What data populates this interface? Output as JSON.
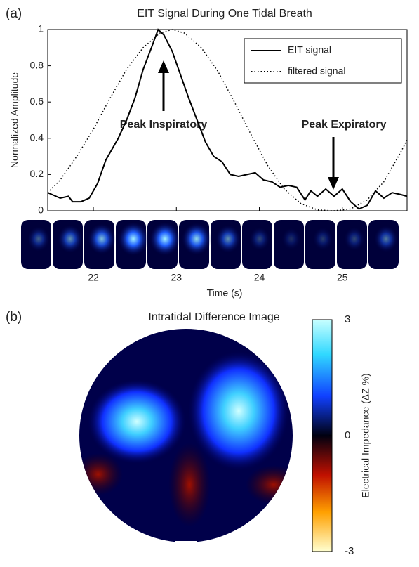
{
  "chart_data": [
    {
      "type": "line",
      "panel_label": "(a)",
      "title": "EIT Signal During One Tidal Breath",
      "xlabel": "Time (s)",
      "ylabel": "Normalized Amplitude",
      "xlim": [
        21.45,
        25.78
      ],
      "xticks": [
        22,
        23,
        24,
        25
      ],
      "ylim": [
        0,
        1
      ],
      "yticks": [
        0,
        0.2,
        0.4,
        0.6,
        0.8,
        1
      ],
      "legend": "upper right",
      "annotations": [
        "Peak Inspiratory",
        "Peak Expiratory"
      ],
      "series": [
        {
          "name": "EIT signal",
          "color": "#000000",
          "style": "solid",
          "x": [
            21.45,
            21.55,
            21.6,
            21.7,
            21.75,
            21.85,
            21.95,
            22.05,
            22.15,
            22.3,
            22.4,
            22.5,
            22.6,
            22.7,
            22.78,
            22.85,
            22.95,
            23.05,
            23.15,
            23.25,
            23.35,
            23.45,
            23.55,
            23.65,
            23.75,
            23.85,
            23.95,
            24.05,
            24.15,
            24.25,
            24.35,
            24.45,
            24.55,
            24.62,
            24.7,
            24.8,
            24.9,
            25.0,
            25.1,
            25.2,
            25.3,
            25.4,
            25.5,
            25.6,
            25.7,
            25.78
          ],
          "values": [
            0.1,
            0.08,
            0.07,
            0.08,
            0.05,
            0.05,
            0.07,
            0.15,
            0.28,
            0.4,
            0.5,
            0.62,
            0.78,
            0.9,
            1.0,
            0.97,
            0.88,
            0.75,
            0.62,
            0.5,
            0.38,
            0.3,
            0.27,
            0.2,
            0.19,
            0.2,
            0.21,
            0.17,
            0.16,
            0.13,
            0.14,
            0.13,
            0.06,
            0.11,
            0.08,
            0.12,
            0.08,
            0.12,
            0.05,
            0.01,
            0.03,
            0.11,
            0.07,
            0.1,
            0.09,
            0.08
          ]
        },
        {
          "name": "filtered signal",
          "color": "#000000",
          "style": "dotted",
          "x": [
            21.45,
            21.6,
            21.8,
            22.0,
            22.2,
            22.4,
            22.6,
            22.8,
            22.95,
            23.1,
            23.3,
            23.5,
            23.7,
            23.9,
            24.1,
            24.3,
            24.5,
            24.7,
            24.9,
            25.1,
            25.3,
            25.5,
            25.7,
            25.78
          ],
          "values": [
            0.1,
            0.17,
            0.3,
            0.45,
            0.62,
            0.78,
            0.9,
            0.98,
            1.0,
            0.98,
            0.9,
            0.77,
            0.6,
            0.42,
            0.25,
            0.12,
            0.04,
            0.005,
            0,
            0.01,
            0.06,
            0.16,
            0.32,
            0.39
          ]
        }
      ]
    },
    {
      "type": "heatmap",
      "panel_label": "(b)",
      "title": "Intratidal Difference Image",
      "colorbar_label": "Electrical Impedance (ΔZ %)",
      "clim": [
        -3,
        3
      ],
      "cticks": [
        3,
        0,
        -3
      ]
    }
  ]
}
